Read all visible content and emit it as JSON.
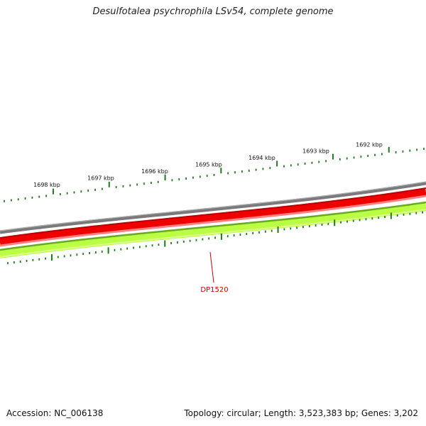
{
  "title": "Desulfotalea psychrophila LSv54, complete genome",
  "accession_label": "Accession: NC_006138",
  "summary_label": "Topology: circular; Length: 3,523,383 bp; Genes: 3,202",
  "scale_labels": [
    "1698 kbp",
    "1697 kbp",
    "1696 kbp",
    "1695 kbp",
    "1694 kbp",
    "1693 kbp",
    "1692 kbp"
  ],
  "gene_label": "DP1520",
  "colors": {
    "outer_ring": "#8a8a8a",
    "forward_genes": "#ee0000",
    "forward_genes_light": "#ff7070",
    "reverse_genes": "#b8ff40",
    "reverse_genes_dark": "#6aaa20",
    "ticks": "#1c7a1c",
    "gene_label": "#d00000"
  }
}
